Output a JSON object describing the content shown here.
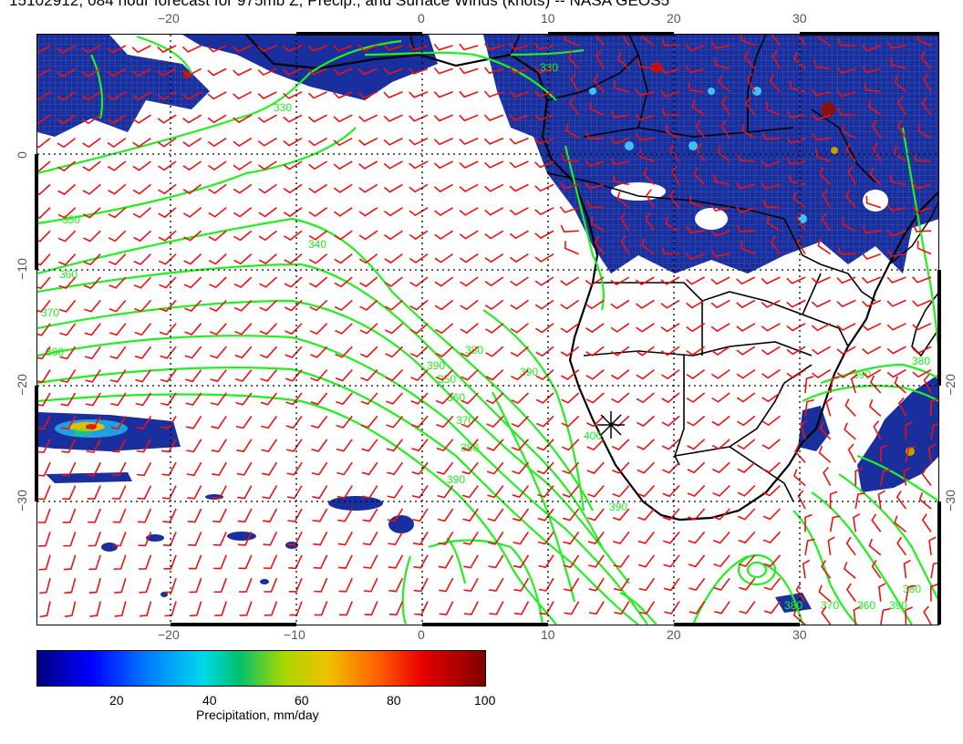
{
  "title": "15102912, 084 hour forecast for 975mb Z, Precip., and Surface Winds (knots) -- NASA GEOS5",
  "map": {
    "lon_labels_top": [
      "−20",
      "0",
      "10",
      "20",
      "30"
    ],
    "lon_labels_bottom": [
      "−20",
      "−10",
      "0",
      "10",
      "20",
      "30"
    ],
    "lat_labels_left": [
      "0",
      "−10",
      "−20",
      "−30"
    ],
    "lat_labels_right": [
      "−20",
      "−30"
    ],
    "contour_labels": [
      "340",
      "350",
      "360",
      "370",
      "380",
      "390",
      "350",
      "360",
      "370",
      "380",
      "390",
      "380",
      "390",
      "400",
      "390",
      "380",
      "370",
      "360",
      "390",
      "380",
      "330",
      "330",
      "360",
      "380",
      "390"
    ],
    "colors": {
      "precip": "#1a2f9e",
      "contour": "#22ee22",
      "wind": "#ee1111",
      "coast": "#000000",
      "grid": "#000000"
    }
  },
  "colorbar": {
    "ticks": [
      "20",
      "40",
      "60",
      "80",
      "100"
    ],
    "label": "Precipitation, mm/day",
    "range": [
      0,
      100
    ]
  }
}
